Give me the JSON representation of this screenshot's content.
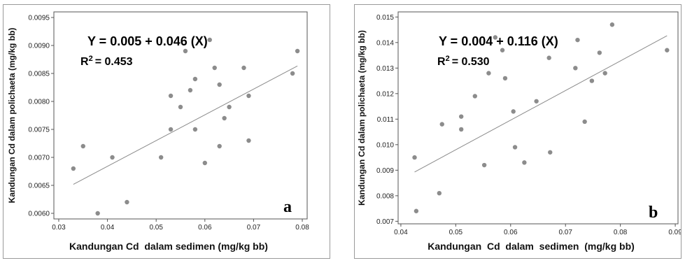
{
  "chart_data": [
    {
      "type": "scatter",
      "panel_label": "a",
      "equation": "Y = 0.005 + 0.046 (X)",
      "r2_prefix": "R",
      "r2_value": "= 0.453",
      "xlabel": "Kandungan Cd  dalam sedimen (mg/kg bb)",
      "ylabel": "Kandungan Cd dalam polichaeta (mg/kg bb)",
      "xlim": [
        0.029,
        0.081
      ],
      "ylim": [
        0.0059,
        0.0096
      ],
      "x_ticks": [
        0.03,
        0.04,
        0.05,
        0.06,
        0.07,
        0.08
      ],
      "x_tick_labels": [
        "0.03",
        "0.04",
        "0.05",
        "0.06",
        "0.07",
        "0.08"
      ],
      "y_ticks": [
        0.006,
        0.0065,
        0.007,
        0.0075,
        0.008,
        0.0085,
        0.009,
        0.0095
      ],
      "y_tick_labels": [
        "0.0060",
        "0.0065",
        "0.0070",
        "0.0075",
        "0.0080",
        "0.0085",
        "0.0090",
        "0.0095"
      ],
      "grid": false,
      "regression": {
        "intercept": 0.005,
        "slope": 0.046,
        "x_range": [
          0.033,
          0.079
        ]
      },
      "x": [
        0.033,
        0.035,
        0.038,
        0.041,
        0.044,
        0.051,
        0.053,
        0.053,
        0.055,
        0.056,
        0.057,
        0.058,
        0.058,
        0.06,
        0.061,
        0.062,
        0.063,
        0.063,
        0.064,
        0.065,
        0.068,
        0.069,
        0.069,
        0.078,
        0.079
      ],
      "y": [
        0.0068,
        0.0072,
        0.006,
        0.007,
        0.0062,
        0.007,
        0.0081,
        0.0075,
        0.0079,
        0.0089,
        0.0082,
        0.0075,
        0.0084,
        0.0069,
        0.0091,
        0.0086,
        0.0083,
        0.0072,
        0.0077,
        0.0079,
        0.0086,
        0.0073,
        0.0081,
        0.0085,
        0.0089
      ]
    },
    {
      "type": "scatter",
      "panel_label": "b",
      "equation": "Y = 0.004 + 0.116 (X)",
      "r2_prefix": "R",
      "r2_value": "= 0.530",
      "xlabel": "Kandungan  Cd  dalam  sedimen  (mg/kg bb)",
      "ylabel": "Kandungan Cd dalam polichaeta (mg/kg bb)",
      "xlim": [
        0.0395,
        0.0905
      ],
      "ylim": [
        0.0069,
        0.0152
      ],
      "x_ticks": [
        0.04,
        0.05,
        0.06,
        0.07,
        0.08,
        0.09
      ],
      "x_tick_labels": [
        "0.04",
        "0.05",
        "0.06",
        "0.07",
        "0.08",
        "0.09"
      ],
      "y_ticks": [
        0.007,
        0.008,
        0.009,
        0.01,
        0.011,
        0.012,
        0.013,
        0.014,
        0.015
      ],
      "y_tick_labels": [
        "0.007",
        "0.008",
        "0.009",
        "0.010",
        "0.011",
        "0.012",
        "0.013",
        "0.014",
        "0.015"
      ],
      "grid": false,
      "regression": {
        "intercept": 0.004,
        "slope": 0.116,
        "x_range": [
          0.0425,
          0.0885
        ]
      },
      "x": [
        0.0425,
        0.0428,
        0.047,
        0.0475,
        0.051,
        0.051,
        0.0535,
        0.0552,
        0.056,
        0.0572,
        0.0585,
        0.059,
        0.0605,
        0.0608,
        0.0625,
        0.0647,
        0.067,
        0.0672,
        0.0718,
        0.0722,
        0.0735,
        0.0748,
        0.0762,
        0.0772,
        0.0785,
        0.0885
      ],
      "y": [
        0.0095,
        0.0074,
        0.0081,
        0.0108,
        0.0111,
        0.0106,
        0.0119,
        0.0092,
        0.0128,
        0.0142,
        0.0137,
        0.0126,
        0.0113,
        0.0099,
        0.0093,
        0.0117,
        0.0134,
        0.0097,
        0.013,
        0.0141,
        0.0109,
        0.0125,
        0.0136,
        0.0128,
        0.0147,
        0.0137
      ]
    }
  ]
}
